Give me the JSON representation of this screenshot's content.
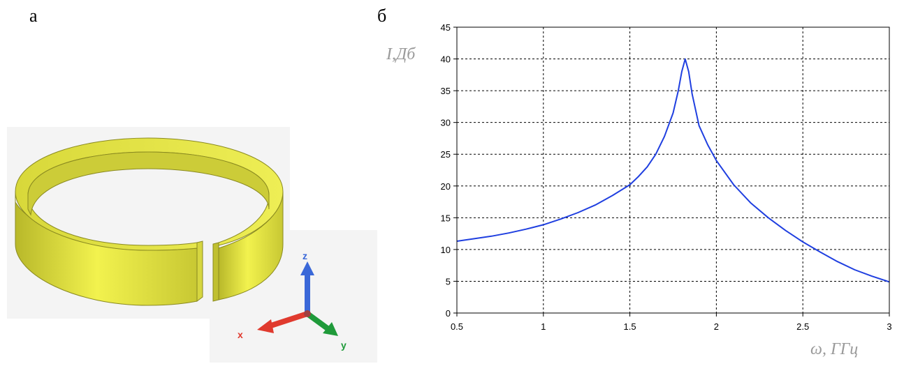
{
  "panels": {
    "a_label": "а",
    "b_label": "б"
  },
  "axes_widget": {
    "x_label": "x",
    "y_label": "y",
    "z_label": "z",
    "colors": {
      "x": "#e03a2e",
      "y": "#1f9a3a",
      "z": "#3a68d8"
    }
  },
  "ring": {
    "color": "#e8e84a",
    "description_icon": "split-ring-resonator-icon"
  },
  "chart_data": {
    "type": "line",
    "xlabel": "ω, ГГц",
    "ylabel": "I,Дб",
    "xlim": [
      0.5,
      3
    ],
    "ylim": [
      0,
      45
    ],
    "xticks": [
      "0.5",
      "1",
      "1.5",
      "2",
      "2.5",
      "3"
    ],
    "yticks": [
      "0",
      "5",
      "10",
      "15",
      "20",
      "25",
      "30",
      "35",
      "40",
      "45"
    ],
    "grid": true,
    "series": [
      {
        "color": "#1f3fe0",
        "x": [
          0.5,
          0.6,
          0.7,
          0.8,
          0.9,
          1.0,
          1.1,
          1.2,
          1.3,
          1.4,
          1.5,
          1.55,
          1.6,
          1.65,
          1.7,
          1.75,
          1.78,
          1.8,
          1.82,
          1.84,
          1.86,
          1.9,
          1.95,
          2.0,
          2.1,
          2.2,
          2.3,
          2.4,
          2.5,
          2.6,
          2.7,
          2.8,
          2.9,
          3.0
        ],
        "y": [
          11.3,
          11.7,
          12.1,
          12.6,
          13.2,
          13.9,
          14.8,
          15.8,
          17.0,
          18.5,
          20.2,
          21.5,
          23.0,
          25.0,
          27.8,
          31.5,
          35.0,
          38.0,
          40.0,
          38.0,
          34.5,
          29.5,
          26.5,
          24.0,
          20.2,
          17.3,
          15.0,
          13.0,
          11.2,
          9.6,
          8.1,
          6.8,
          5.8,
          4.9
        ]
      }
    ]
  }
}
